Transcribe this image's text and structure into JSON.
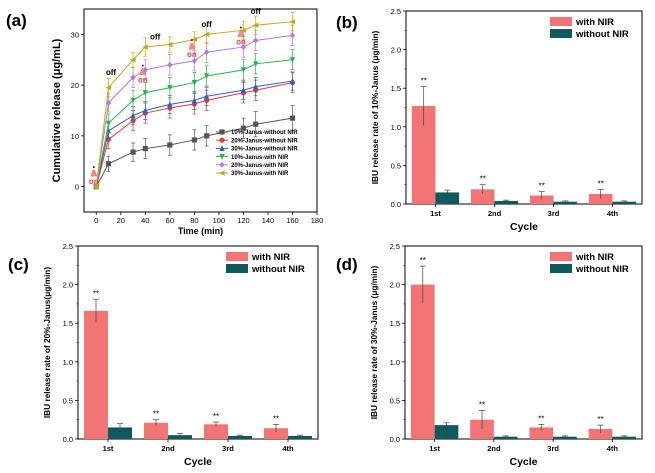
{
  "colors": {
    "with_nir": "#f27474",
    "without_nir": "#12595e",
    "on_marker": "#f48a8a",
    "series": [
      "#555555",
      "#e03a3a",
      "#2f5ec4",
      "#2bb04a",
      "#b57ad6",
      "#c9a21e"
    ]
  },
  "chart_data": [
    {
      "panel": "(a)",
      "type": "line",
      "title": "",
      "xlabel": "Time (min)",
      "ylabel": "Cumulative release (μg/mL)",
      "xlim": [
        -10,
        180
      ],
      "ylim": [
        -5,
        35
      ],
      "xticks": [
        "0",
        "20",
        "40",
        "60",
        "80",
        "100",
        "120",
        "140",
        "160",
        "180"
      ],
      "yticks": [
        "0",
        "10",
        "20",
        "30"
      ],
      "x": [
        0,
        10,
        30,
        40,
        60,
        80,
        90,
        120,
        130,
        160
      ],
      "series": [
        {
          "name": "10%-Janus-without NIR",
          "marker": "square",
          "values": [
            0,
            4.5,
            6.8,
            7.5,
            8.2,
            9.2,
            10.0,
            11.5,
            12.3,
            13.5
          ],
          "errors": [
            0.5,
            1.5,
            1.8,
            2.0,
            2.0,
            2.0,
            2.0,
            2.0,
            2.5,
            2.5
          ]
        },
        {
          "name": "20%-Janus-without NIR",
          "marker": "circle",
          "values": [
            0,
            9.3,
            13.0,
            14.5,
            15.5,
            16.3,
            17.0,
            18.5,
            19.0,
            20.5
          ],
          "errors": [
            0.5,
            1.8,
            2.0,
            2.0,
            2.0,
            2.0,
            2.0,
            2.0,
            2.0,
            2.0
          ]
        },
        {
          "name": "30%-Janus-without NIR",
          "marker": "triangle-up",
          "values": [
            0,
            11.0,
            14.0,
            15.0,
            16.2,
            17.0,
            17.8,
            19.0,
            19.7,
            20.8
          ],
          "errors": [
            0.5,
            1.5,
            1.8,
            1.8,
            1.8,
            1.8,
            1.8,
            1.8,
            1.8,
            1.8
          ]
        },
        {
          "name": "10%-Janus-with NIR",
          "marker": "triangle-down",
          "values": [
            0,
            12.5,
            17.0,
            18.5,
            19.5,
            20.5,
            21.8,
            23.0,
            24.2,
            25.0
          ],
          "errors": [
            0.5,
            1.8,
            2.0,
            2.0,
            2.0,
            2.0,
            2.0,
            2.0,
            2.0,
            2.0
          ]
        },
        {
          "name": "20%-Janus-with NIR",
          "marker": "diamond",
          "values": [
            0,
            16.5,
            21.5,
            23.0,
            24.0,
            24.8,
            26.5,
            27.5,
            28.8,
            29.8
          ],
          "errors": [
            0.5,
            1.8,
            2.0,
            2.0,
            2.0,
            2.0,
            2.0,
            2.0,
            2.0,
            2.0
          ]
        },
        {
          "name": "30%-Janus-with NIR",
          "marker": "triangle-left",
          "values": [
            0,
            19.5,
            25.0,
            27.5,
            28.0,
            29.0,
            30.0,
            30.8,
            31.8,
            32.5
          ],
          "errors": [
            0.5,
            1.8,
            1.5,
            1.8,
            1.5,
            1.5,
            1.8,
            1.8,
            1.8,
            1.8
          ]
        }
      ],
      "annotations": [
        {
          "text": "on",
          "x": -2,
          "y": 0.5
        },
        {
          "text": "off",
          "x": 12,
          "y": 22
        },
        {
          "text": "on",
          "x": 38,
          "y": 20.5
        },
        {
          "text": "off",
          "x": 48,
          "y": 29
        },
        {
          "text": "on",
          "x": 78,
          "y": 25.5
        },
        {
          "text": "off",
          "x": 90,
          "y": 31.5
        },
        {
          "text": "on",
          "x": 118,
          "y": 28
        },
        {
          "text": "off",
          "x": 130,
          "y": 34
        }
      ],
      "legend_position": "bottom-right"
    },
    {
      "panel": "(b)",
      "type": "bar",
      "xlabel": "Cycle",
      "ylabel": "IBU release rate of 10%-Janus (μg/min)",
      "categories": [
        "1st",
        "2nd",
        "3rd",
        "4th"
      ],
      "ylim": [
        0,
        2.5
      ],
      "yticks": [
        "0.0",
        "0.5",
        "1.0",
        "1.5",
        "2.0",
        "2.5"
      ],
      "series": [
        {
          "name": "with NIR",
          "values": [
            1.27,
            0.19,
            0.11,
            0.13
          ],
          "errors": [
            0.25,
            0.06,
            0.05,
            0.06
          ]
        },
        {
          "name": "without NIR",
          "values": [
            0.15,
            0.04,
            0.03,
            0.03
          ],
          "errors": [
            0.03,
            0.01,
            0.01,
            0.01
          ]
        }
      ],
      "significance": [
        "**",
        "**",
        "**",
        "**"
      ],
      "legend_position": "top-right"
    },
    {
      "panel": "(c)",
      "type": "bar",
      "xlabel": "Cycle",
      "ylabel": "IBU release rate of 20%-Janus(μg/min)",
      "categories": [
        "1st",
        "2nd",
        "3rd",
        "4th"
      ],
      "ylim": [
        0,
        2.5
      ],
      "yticks": [
        "0.0",
        "0.5",
        "1.0",
        "1.5",
        "2.0",
        "2.5"
      ],
      "series": [
        {
          "name": "with NIR",
          "values": [
            1.66,
            0.21,
            0.19,
            0.14
          ],
          "errors": [
            0.15,
            0.04,
            0.03,
            0.05
          ]
        },
        {
          "name": "without NIR",
          "values": [
            0.15,
            0.05,
            0.04,
            0.04
          ],
          "errors": [
            0.05,
            0.02,
            0.01,
            0.01
          ]
        }
      ],
      "significance": [
        "**",
        "**",
        "**",
        "**"
      ],
      "legend_position": "top-right"
    },
    {
      "panel": "(d)",
      "type": "bar",
      "xlabel": "Cycle",
      "ylabel": "IBU release rate of 30%-Janus (μg/min)",
      "categories": [
        "1st",
        "2nd",
        "3rd",
        "4th"
      ],
      "ylim": [
        0,
        2.5
      ],
      "yticks": [
        "0.0",
        "0.5",
        "1.0",
        "1.5",
        "2.0",
        "2.5"
      ],
      "series": [
        {
          "name": "with NIR",
          "values": [
            2.0,
            0.25,
            0.15,
            0.13
          ],
          "errors": [
            0.24,
            0.12,
            0.04,
            0.05
          ]
        },
        {
          "name": "without NIR",
          "values": [
            0.18,
            0.03,
            0.03,
            0.03
          ],
          "errors": [
            0.03,
            0.01,
            0.01,
            0.01
          ]
        }
      ],
      "significance": [
        "**",
        "**",
        "**",
        "**"
      ],
      "legend_position": "top-right"
    }
  ]
}
